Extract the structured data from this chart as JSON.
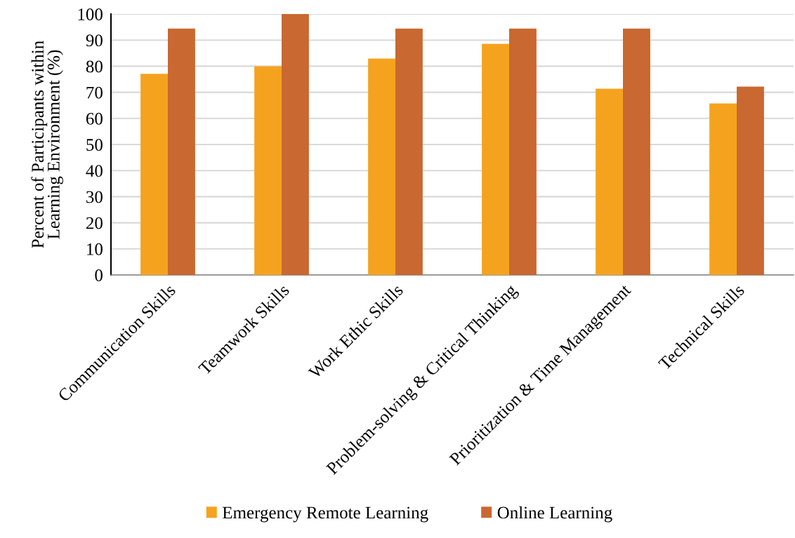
{
  "chart_data": {
    "type": "bar",
    "ylabel": "Percent of Participants within\nLearning Environment (%)",
    "categories": [
      "Communication Skills",
      "Teamwork Skills",
      "Work Ethic Skills",
      "Problem-solving & Critical Thinking",
      "Prioritization & Time Management",
      "Technical Skills"
    ],
    "series": [
      {
        "name": "Emergency Remote Learning",
        "color": "#f5a31e",
        "values": [
          77.1,
          80,
          82.9,
          88.6,
          71.4,
          65.7
        ]
      },
      {
        "name": "Online Learning",
        "color": "#c96830",
        "values": [
          94.4,
          100,
          94.4,
          94.4,
          94.4,
          72.2
        ]
      }
    ],
    "ylim": [
      0,
      100
    ],
    "yticks": [
      0,
      10,
      20,
      30,
      40,
      50,
      60,
      70,
      80,
      90,
      100
    ],
    "grid": "y",
    "legend": "bottom"
  }
}
